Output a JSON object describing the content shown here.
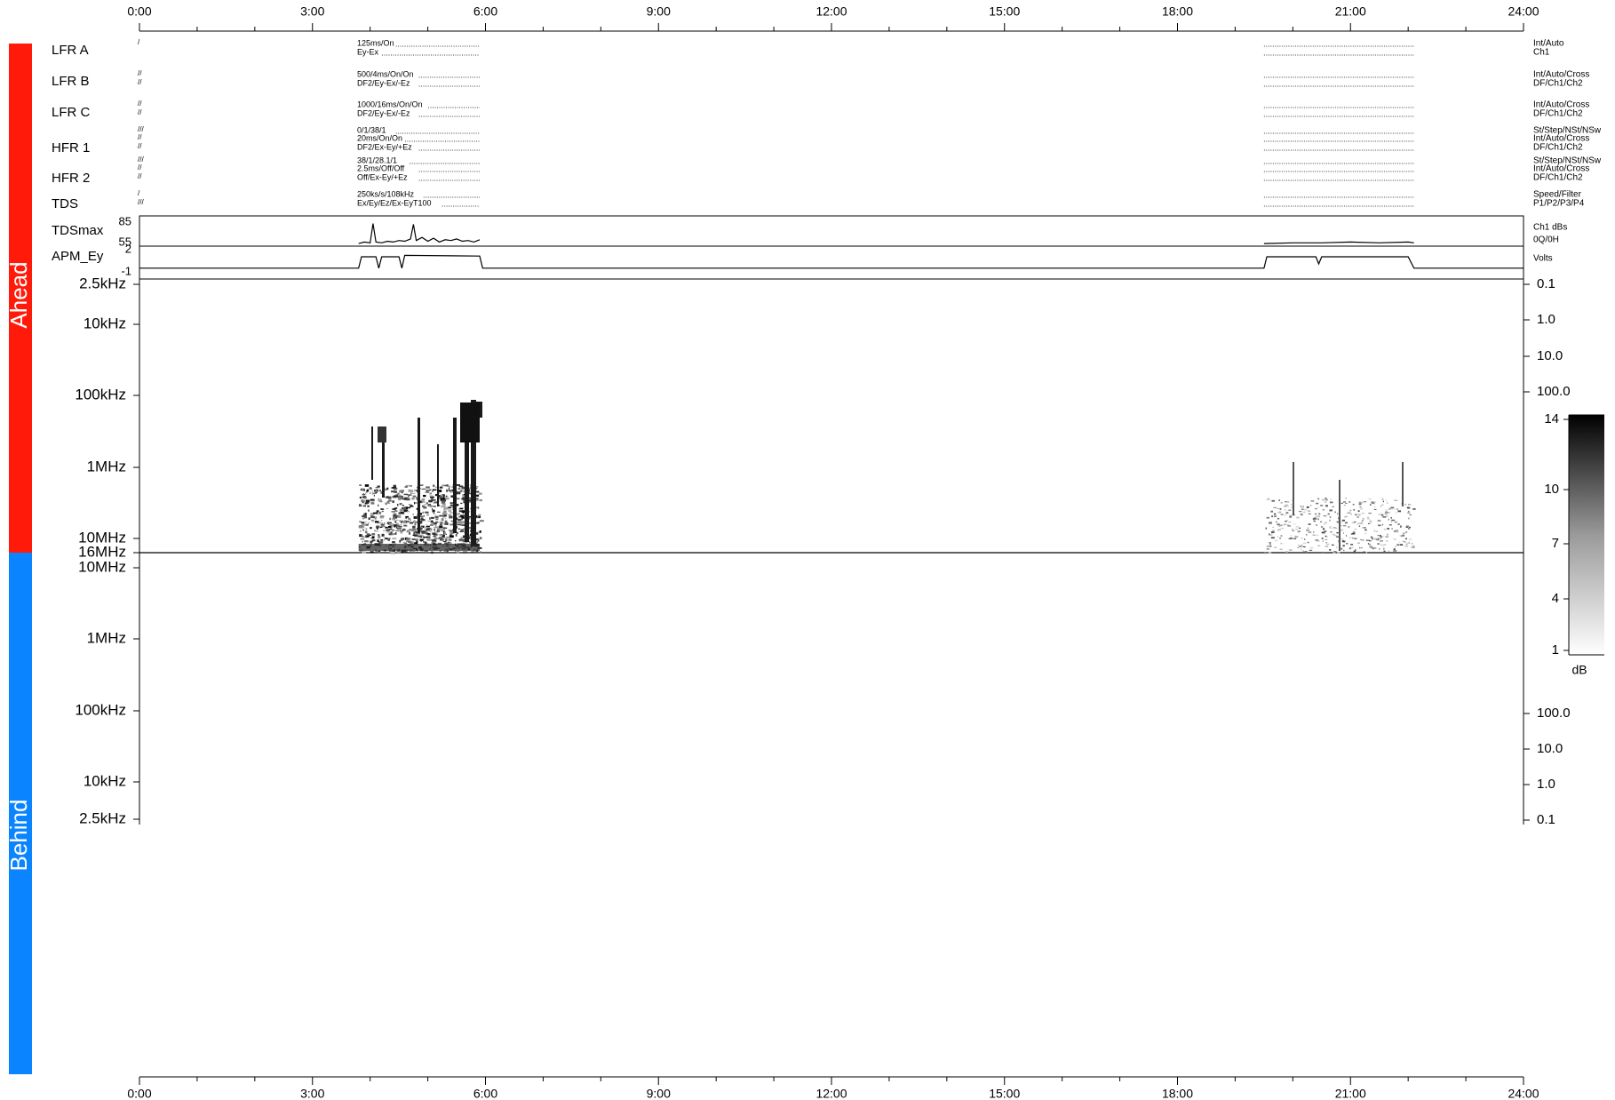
{
  "time_axis": {
    "ticks": [
      "0:00",
      "3:00",
      "6:00",
      "9:00",
      "12:00",
      "15:00",
      "18:00",
      "21:00",
      "24:00"
    ]
  },
  "side_bars": {
    "ahead": {
      "label": "Ahead",
      "color": "#ff1a0a"
    },
    "behind": {
      "label": "Behind",
      "color": "#0a84ff"
    }
  },
  "mode_rows": [
    {
      "name": "LFR A",
      "left_codes": [
        "/"
      ],
      "burst1_lines": [
        "125ms/On",
        "Ey-Ex"
      ],
      "right_labels": [
        "Int/Auto",
        "Ch1"
      ]
    },
    {
      "name": "LFR B",
      "left_codes": [
        "//",
        "//"
      ],
      "burst1_lines": [
        "500/4ms/On/On",
        "DF2/Ey-Ex/-Ez"
      ],
      "right_labels": [
        "Int/Auto/Cross",
        "DF/Ch1/Ch2"
      ]
    },
    {
      "name": "LFR C",
      "left_codes": [
        "//",
        "//"
      ],
      "burst1_lines": [
        "1000/16ms/On/On",
        "DF2/Ey-Ex/-Ez"
      ],
      "right_labels": [
        "Int/Auto/Cross",
        "DF/Ch1/Ch2"
      ]
    },
    {
      "name": "HFR 1",
      "left_codes": [
        "///",
        "//",
        "//"
      ],
      "burst1_lines": [
        "0/1/38/1",
        "20ms/On/On",
        "DF2/Ex-Ey/+Ez"
      ],
      "right_labels": [
        "St/Step/NSt/NSw",
        "Int/Auto/Cross",
        "DF/Ch1/Ch2"
      ]
    },
    {
      "name": "HFR 2",
      "left_codes": [
        "///",
        "//",
        "//"
      ],
      "burst1_lines": [
        "38/1/28.1/1",
        "2.5ms/Off/Off",
        "Off/Ex-Ey/+Ez"
      ],
      "right_labels": [
        "St/Step/NSt/NSw",
        "Int/Auto/Cross",
        "DF/Ch1/Ch2"
      ]
    },
    {
      "name": "TDS",
      "left_codes": [
        "/",
        "///"
      ],
      "burst1_lines": [
        "250ks/s/108kHz",
        "Ex/Ey/Ez/Ex-EyT100"
      ],
      "right_labels": [
        "Speed/Filter",
        "P1/P2/P3/P4"
      ]
    }
  ],
  "tdsmax": {
    "label": "TDSmax",
    "ticks": [
      "85",
      "55"
    ],
    "right_labels": [
      "Ch1 dBs",
      "0Q/0H"
    ]
  },
  "apm": {
    "label": "APM_Ey",
    "ticks": [
      "2",
      "-1"
    ],
    "right_label": "Volts"
  },
  "ahead_axis": {
    "left_ticks": [
      "2.5kHz",
      "10kHz",
      "100kHz",
      "1MHz",
      "10MHz",
      "16MHz"
    ],
    "right_ticks": [
      "0.1",
      "1.0",
      "10.0",
      "100.0"
    ]
  },
  "behind_axis": {
    "left_ticks": [
      "10MHz",
      "1MHz",
      "100kHz",
      "10kHz",
      "2.5kHz"
    ],
    "right_ticks": [
      "100.0",
      "10.0",
      "1.0",
      "0.1"
    ]
  },
  "colorbar": {
    "ticks": [
      "14",
      "10",
      "7",
      "4",
      "1"
    ],
    "unit": "dB"
  },
  "chart_data": {
    "type": "heatmap",
    "x_unit": "hours (time of day)",
    "xlim": [
      0,
      24
    ],
    "ahead_frequency_range": [
      "2.5kHz",
      "16MHz"
    ],
    "behind_frequency_range": [
      "2.5kHz",
      "10MHz"
    ],
    "colorbar_range_db": [
      1,
      14
    ],
    "active_intervals_hours": [
      [
        3.8,
        5.9
      ],
      [
        19.5,
        22.1
      ]
    ],
    "tdsmax_series": {
      "ylim": [
        55,
        85
      ],
      "x": [
        3.8,
        3.9,
        4.0,
        4.05,
        4.1,
        4.2,
        4.3,
        4.4,
        4.5,
        4.6,
        4.7,
        4.75,
        4.8,
        4.9,
        5.0,
        5.1,
        5.2,
        5.3,
        5.4,
        5.5,
        5.6,
        5.7,
        5.8,
        5.9,
        19.5,
        20.0,
        20.5,
        21.0,
        21.5,
        22.0,
        22.1
      ],
      "y": [
        56,
        58,
        57,
        82,
        58,
        57,
        59,
        58,
        60,
        59,
        62,
        81,
        60,
        64,
        59,
        63,
        58,
        61,
        60,
        62,
        59,
        60,
        58,
        61,
        56,
        57,
        57,
        58,
        57,
        58,
        57
      ]
    },
    "apm_series": {
      "ylim": [
        -1,
        2
      ],
      "x": [
        0,
        3.8,
        3.85,
        4.1,
        4.15,
        4.2,
        4.3,
        4.5,
        4.55,
        4.6,
        5.9,
        5.95,
        19.5,
        19.55,
        20.4,
        20.45,
        20.5,
        22.0,
        22.1,
        24
      ],
      "y": [
        -0.6,
        -0.6,
        1.0,
        1.0,
        -0.6,
        1.0,
        1.0,
        1.0,
        -0.6,
        1.2,
        1.1,
        -0.6,
        -0.6,
        1.0,
        1.0,
        0.0,
        1.0,
        1.0,
        -0.6,
        -0.6
      ]
    }
  }
}
